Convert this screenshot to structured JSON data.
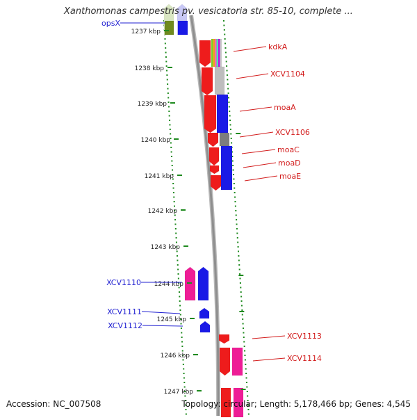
{
  "title": "Xanthomonas campestris pv. vesicatoria str. 85-10, complete ...",
  "accession": "Accession: NC_007508",
  "topology": "Topology: circular; Length: 5,178,466 bp; Genes: 4,545",
  "colors": {
    "left_label": "#1f1fd1",
    "right_label": "#d21a1a",
    "dots": "#1e8a1e",
    "backbone": "#8f8f8f",
    "red": "#ee1c1c",
    "blue": "#1a1ae6",
    "pink": "#ee1d96",
    "gray": "#bdbdbd",
    "darkgray": "#7d7d7d",
    "olive": "#6f8a1e"
  },
  "kbp_ticks": [
    "1237 kbp",
    "1238 kbp",
    "1239 kbp",
    "1240 kbp",
    "1241 kbp",
    "1242 kbp",
    "1243 kbp",
    "1244 kbp",
    "1245 kbp",
    "1246 kbp",
    "1247 kbp"
  ],
  "left_labels": [
    "opsX",
    "XCV1110",
    "XCV1111",
    "XCV1112"
  ],
  "right_labels": [
    "kdkA",
    "XCV1104",
    "moaA",
    "XCV1106",
    "moaC",
    "moaD",
    "moaE",
    "XCV1113",
    "XCV1114"
  ]
}
